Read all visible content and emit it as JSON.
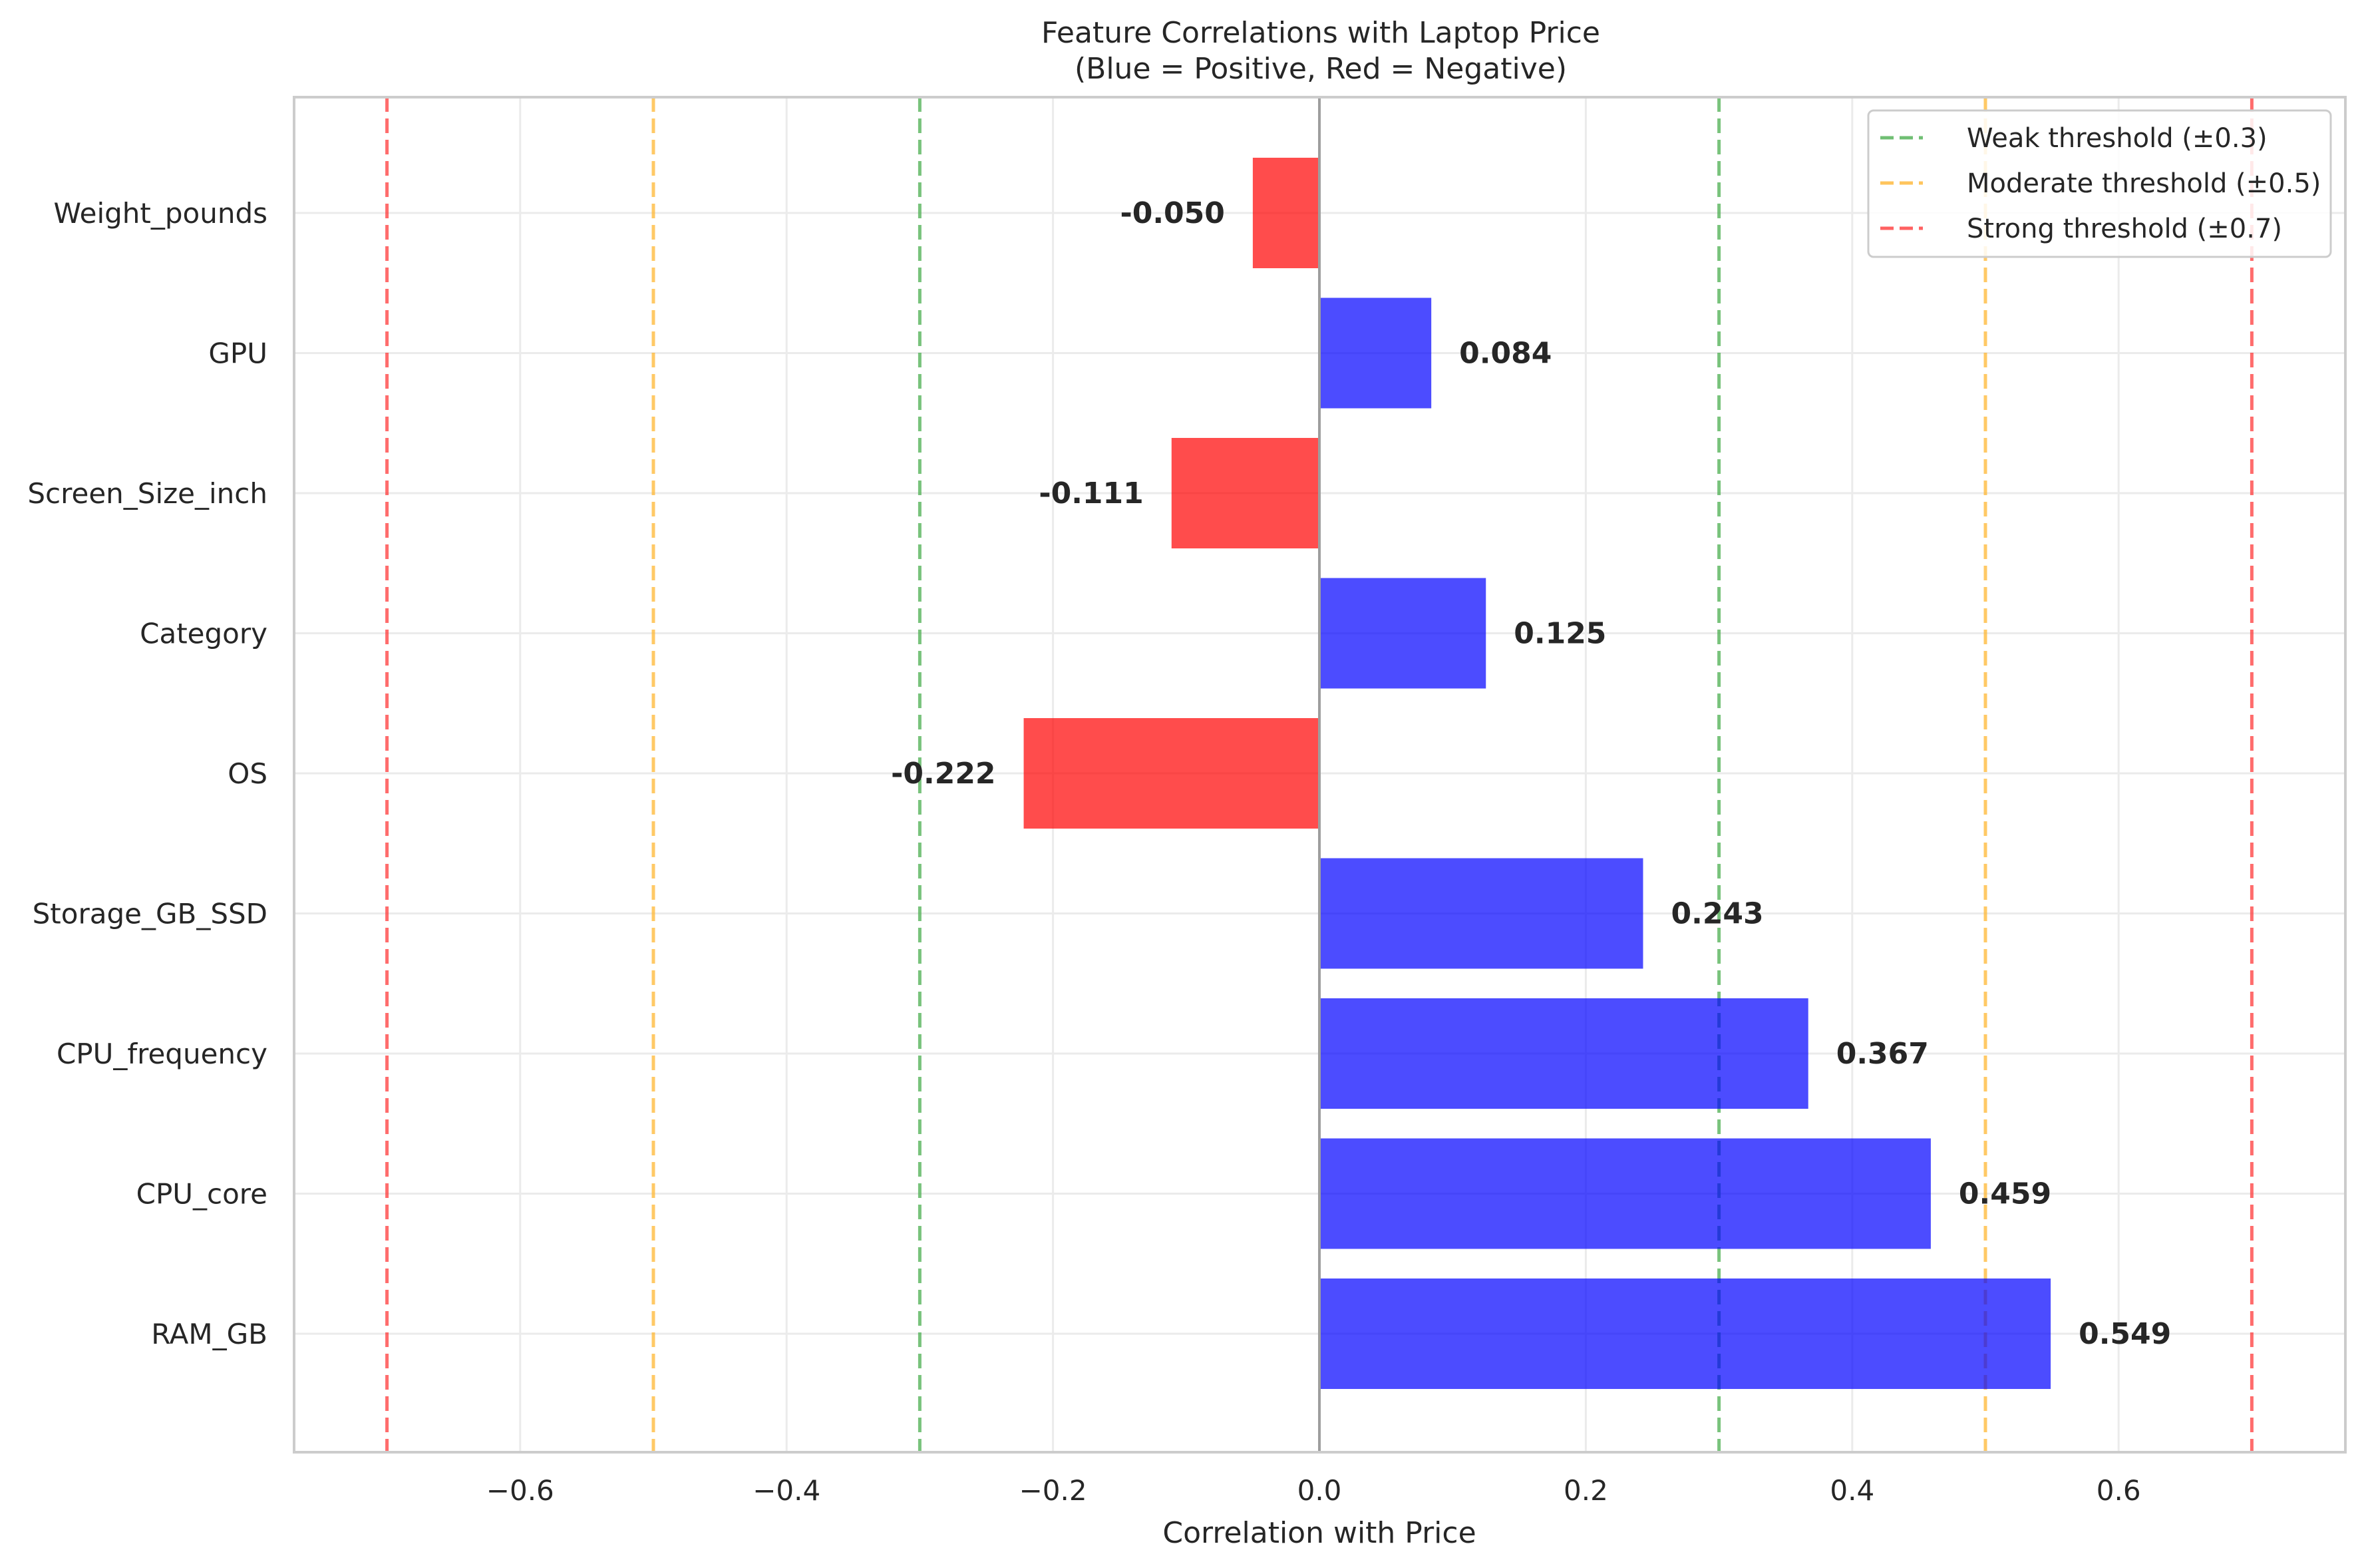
{
  "chart_data": {
    "type": "bar",
    "orientation": "horizontal",
    "title": "Feature Correlations with Laptop Price",
    "subtitle": "(Blue = Positive, Red = Negative)",
    "xlabel": "Correlation with Price",
    "ylabel": "",
    "xlim": [
      -0.77,
      0.77
    ],
    "x_ticks": [
      -0.6,
      -0.4,
      -0.2,
      0.0,
      0.2,
      0.4,
      0.6
    ],
    "x_tick_labels": [
      "−0.6",
      "−0.4",
      "−0.2",
      "0.0",
      "0.2",
      "0.4",
      "0.6"
    ],
    "grid": true,
    "categories": [
      "Weight_pounds",
      "GPU",
      "Screen_Size_inch",
      "Category",
      "OS",
      "Storage_GB_SSD",
      "CPU_frequency",
      "CPU_core",
      "RAM_GB"
    ],
    "values": [
      -0.05,
      0.084,
      -0.111,
      0.125,
      -0.222,
      0.243,
      0.367,
      0.459,
      0.549
    ],
    "value_labels": [
      "-0.050",
      "0.084",
      "-0.111",
      "0.125",
      "-0.222",
      "0.243",
      "0.367",
      "0.459",
      "0.549"
    ],
    "colors": {
      "positive": "#0000ff",
      "negative": "#ff0000"
    },
    "thresholds": [
      {
        "label": "Weak threshold (±0.3)",
        "value": 0.3,
        "color": "#4caf50"
      },
      {
        "label": "Moderate threshold (±0.5)",
        "value": 0.5,
        "color": "#ffb733"
      },
      {
        "label": "Strong threshold (±0.7)",
        "value": 0.7,
        "color": "#ff3b3b"
      }
    ],
    "legend_position": "top-right"
  }
}
